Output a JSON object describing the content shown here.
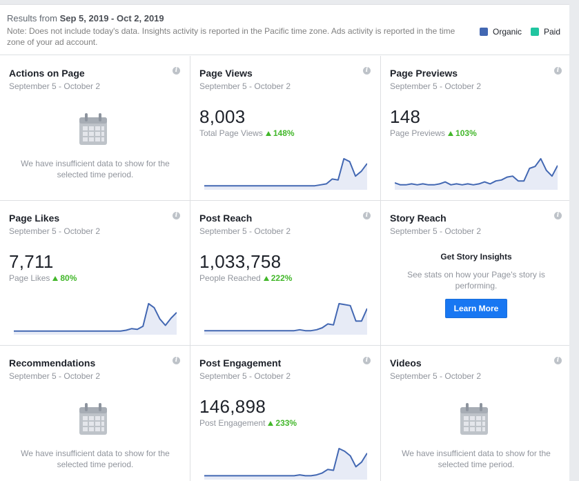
{
  "header": {
    "results_prefix": "Results from",
    "results_range": "Sep 5, 2019 - Oct 2, 2019",
    "note": "Note: Does not include today's data. Insights activity is reported in the Pacific time zone. Ads activity is reported in the time zone of your ad account.",
    "legend": [
      {
        "label": "Organic",
        "color": "#4267b2"
      },
      {
        "label": "Paid",
        "color": "#20c5a0"
      }
    ]
  },
  "cards": [
    {
      "title": "Actions on Page",
      "date": "September 5 - October 2",
      "empty_text": "We have insufficient data to show for the selected time period."
    },
    {
      "title": "Page Views",
      "date": "September 5 - October 2",
      "value": "8,003",
      "sub_label": "Total Page Views",
      "change": "148%"
    },
    {
      "title": "Page Previews",
      "date": "September 5 - October 2",
      "value": "148",
      "sub_label": "Page Previews",
      "change": "103%"
    },
    {
      "title": "Page Likes",
      "date": "September 5 - October 2",
      "value": "7,711",
      "sub_label": "Page Likes",
      "change": "80%"
    },
    {
      "title": "Post Reach",
      "date": "September 5 - October 2",
      "value": "1,033,758",
      "sub_label": "People Reached",
      "change": "222%"
    },
    {
      "title": "Story Reach",
      "date": "September 5 - October 2",
      "story_head": "Get Story Insights",
      "story_text": "See stats on how your Page's story is performing.",
      "button": "Learn More"
    },
    {
      "title": "Recommendations",
      "date": "September 5 - October 2",
      "empty_text": "We have insufficient data to show for the selected time period."
    },
    {
      "title": "Post Engagement",
      "date": "September 5 - October 2",
      "value": "146,898",
      "sub_label": "Post Engagement",
      "change": "233%"
    },
    {
      "title": "Videos",
      "date": "September 5 - October 2",
      "empty_text": "We have insufficient data to show for the selected time period."
    }
  ],
  "info_icon": "info-icon",
  "chart_data": [
    {
      "type": "area",
      "name": "Page Views",
      "values": [
        2,
        2,
        2,
        2,
        2,
        2,
        2,
        2,
        2,
        2,
        2,
        2,
        2,
        2,
        2,
        2,
        2,
        2,
        2,
        2,
        3,
        4,
        9,
        8,
        30,
        27,
        12,
        17,
        25
      ]
    },
    {
      "type": "area",
      "name": "Page Previews",
      "values": [
        5,
        3,
        3,
        4,
        3,
        4,
        3,
        3,
        4,
        6,
        3,
        4,
        3,
        4,
        3,
        4,
        6,
        4,
        7,
        8,
        11,
        12,
        7,
        7,
        20,
        22,
        30,
        18,
        12,
        23
      ]
    },
    {
      "type": "area",
      "name": "Page Likes",
      "values": [
        2,
        2,
        2,
        2,
        2,
        2,
        2,
        2,
        2,
        2,
        2,
        2,
        2,
        2,
        2,
        2,
        2,
        2,
        2,
        2,
        3,
        5,
        4,
        8,
        36,
        31,
        17,
        9,
        18,
        25
      ]
    },
    {
      "type": "area",
      "name": "Post Reach",
      "values": [
        2,
        2,
        2,
        2,
        2,
        2,
        2,
        2,
        2,
        2,
        2,
        2,
        2,
        2,
        2,
        2,
        2,
        3,
        2,
        2,
        3,
        5,
        9,
        8,
        30,
        29,
        28,
        12,
        12,
        25
      ]
    },
    {
      "type": "area",
      "name": "Post Engagement",
      "values": [
        2,
        2,
        2,
        2,
        2,
        2,
        2,
        2,
        2,
        2,
        2,
        2,
        2,
        2,
        2,
        2,
        2,
        3,
        2,
        2,
        3,
        5,
        9,
        8,
        32,
        29,
        24,
        12,
        17,
        27
      ]
    }
  ]
}
